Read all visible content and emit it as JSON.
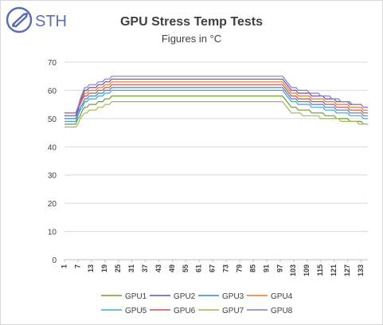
{
  "brand": {
    "name": "STH",
    "accent": "#5b6fb0"
  },
  "chart_data": {
    "type": "line",
    "title": "GPU Stress Temp Tests",
    "subtitle": "Figures in °C",
    "xlabel": "",
    "ylabel": "",
    "ylim": [
      0,
      70
    ],
    "yticks": [
      0,
      10,
      20,
      30,
      40,
      50,
      60,
      70
    ],
    "x_range": [
      1,
      136
    ],
    "xticks": [
      1,
      7,
      13,
      19,
      25,
      31,
      37,
      43,
      49,
      55,
      61,
      67,
      73,
      79,
      85,
      91,
      97,
      103,
      109,
      115,
      121,
      127,
      133
    ],
    "grid": "horizontal",
    "legend": "bottom",
    "series": [
      {
        "name": "GPU1",
        "color": "#6f9a3a",
        "start": 48,
        "plateau": 58,
        "end": 48
      },
      {
        "name": "GPU2",
        "color": "#6a4fa3",
        "start": 51,
        "plateau": 64,
        "end": 54
      },
      {
        "name": "GPU3",
        "color": "#3b87c4",
        "start": 50,
        "plateau": 61,
        "end": 51
      },
      {
        "name": "GPU4",
        "color": "#e07a2f",
        "start": 52,
        "plateau": 63,
        "end": 53
      },
      {
        "name": "GPU5",
        "color": "#4aa3c8",
        "start": 49,
        "plateau": 60,
        "end": 50
      },
      {
        "name": "GPU6",
        "color": "#c9504e",
        "start": 52,
        "plateau": 62,
        "end": 52
      },
      {
        "name": "GPU7",
        "color": "#9bbb59",
        "start": 47,
        "plateau": 56,
        "end": 48
      },
      {
        "name": "GPU8",
        "color": "#8a7cc4",
        "start": 52,
        "plateau": 65,
        "end": 54
      }
    ]
  }
}
